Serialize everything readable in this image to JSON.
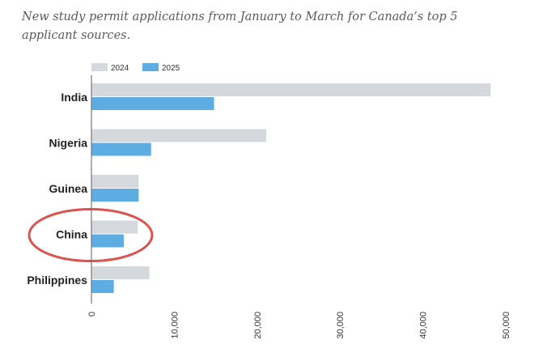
{
  "chart_data": {
    "type": "bar",
    "orientation": "horizontal",
    "title": "New study permit applications from January to March for Canada’s top 5 applicant sources.",
    "categories": [
      "India",
      "Nigeria",
      "Guinea",
      "China",
      "Philippines"
    ],
    "series": [
      {
        "name": "2024",
        "color": "#d5d8dc",
        "values": [
          48200,
          21100,
          5700,
          5600,
          7000
        ]
      },
      {
        "name": "2025",
        "color": "#5dade2",
        "values": [
          14800,
          7200,
          5700,
          3900,
          2700
        ]
      }
    ],
    "xlim": [
      0,
      50000
    ],
    "xticks": [
      "0",
      "10,000",
      "20,000",
      "30,000",
      "40,000",
      "50,000"
    ],
    "grid": false,
    "legend": "top-left",
    "annotation": {
      "type": "ellipse",
      "target": "China",
      "color": "#d9534f"
    }
  }
}
